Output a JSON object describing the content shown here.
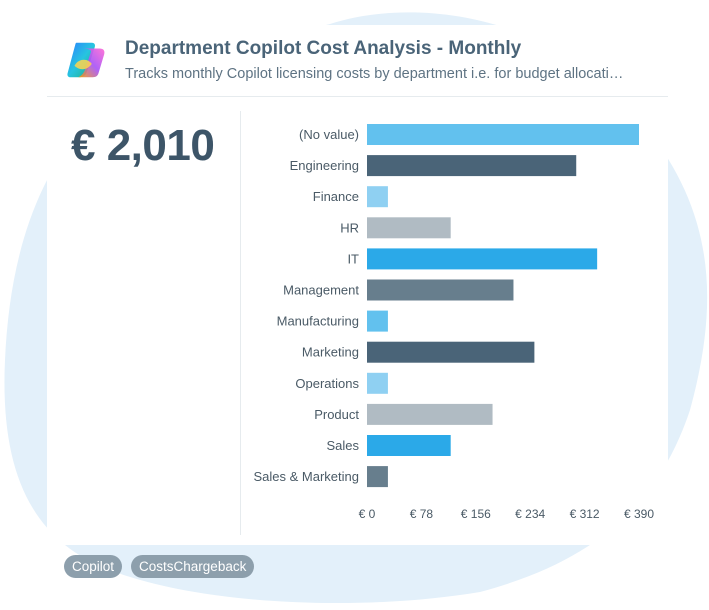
{
  "header": {
    "title": "Department Copilot Cost Analysis - Monthly",
    "subtitle": "Tracks monthly Copilot licensing costs by department i.e. for budget allocati…"
  },
  "kpi": {
    "value": "€ 2,010"
  },
  "tags": [
    "Copilot",
    "CostsChargeback"
  ],
  "colors": {
    "blob": "#e3f0fa",
    "bar_colors": [
      "#62c1ee",
      "#4a6478",
      "#8fd0f2",
      "#b0bbc3",
      "#2ba9e8",
      "#677e8d",
      "#62c1ee",
      "#4a6478",
      "#8fd0f2",
      "#b0bbc3",
      "#2ba9e8",
      "#677e8d"
    ]
  },
  "chart_data": {
    "type": "bar",
    "orientation": "horizontal",
    "categories": [
      "(No value)",
      "Engineering",
      "Finance",
      "HR",
      "IT",
      "Management",
      "Manufacturing",
      "Marketing",
      "Operations",
      "Product",
      "Sales",
      "Sales & Marketing"
    ],
    "values": [
      390,
      300,
      30,
      120,
      330,
      210,
      30,
      240,
      30,
      180,
      120,
      30
    ],
    "xlim": [
      0,
      390
    ],
    "x_ticks": [
      0,
      78,
      156,
      234,
      312,
      390
    ],
    "x_tick_labels": [
      "€ 0",
      "€ 78",
      "€ 156",
      "€ 234",
      "€ 312",
      "€ 390"
    ],
    "grid": false,
    "legend": "none"
  }
}
